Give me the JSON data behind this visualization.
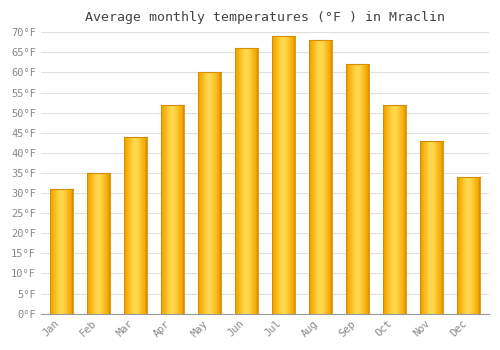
{
  "title": "Average monthly temperatures (°F ) in Mraclin",
  "months": [
    "Jan",
    "Feb",
    "Mar",
    "Apr",
    "May",
    "Jun",
    "Jul",
    "Aug",
    "Sep",
    "Oct",
    "Nov",
    "Dec"
  ],
  "values": [
    31,
    35,
    44,
    52,
    60,
    66,
    69,
    68,
    62,
    52,
    43,
    34
  ],
  "bar_color_center": "#FFD84D",
  "bar_color_edge": "#F5A800",
  "bar_color_very_edge": "#D98C00",
  "ylim": [
    0,
    70
  ],
  "ytick_step": 5,
  "background_color": "#ffffff",
  "plot_bg_color": "#ffffff",
  "grid_color": "#e0e0e0",
  "tick_label_color": "#888888",
  "title_color": "#444444",
  "font_family": "monospace",
  "bar_width": 0.62,
  "fig_width": 5.0,
  "fig_height": 3.5,
  "dpi": 100
}
